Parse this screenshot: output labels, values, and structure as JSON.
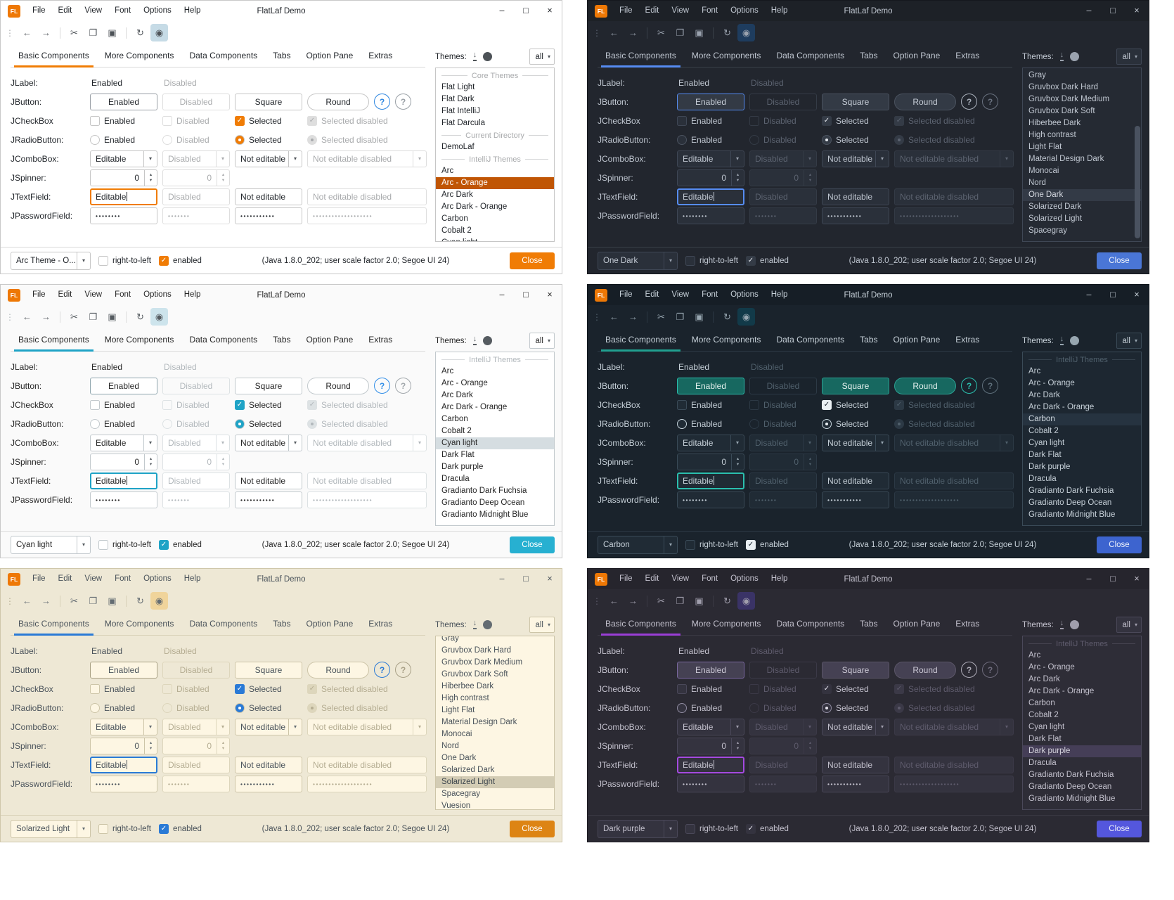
{
  "shared": {
    "titlebar": {
      "logo": "FL",
      "title": "FlatLaf Demo",
      "menus": [
        "File",
        "Edit",
        "View",
        "Font",
        "Options",
        "Help"
      ],
      "controls": {
        "minimize": "–",
        "maximize": "□",
        "close": "×"
      }
    },
    "toolbar": {
      "icons": [
        {
          "name": "back",
          "glyph": "←"
        },
        {
          "name": "forward",
          "glyph": "→"
        },
        {
          "name": "cut",
          "glyph": "✂"
        },
        {
          "name": "copy",
          "glyph": "❐"
        },
        {
          "name": "paste",
          "glyph": "▣"
        },
        {
          "name": "refresh",
          "glyph": "↻"
        },
        {
          "name": "eye",
          "glyph": "◉",
          "toggled": true
        }
      ],
      "dividers_after": [
        1,
        4
      ]
    },
    "tabs": [
      "Basic Components",
      "More Components",
      "Data Components",
      "Tabs",
      "Option Pane",
      "Extras"
    ],
    "active_tab_index": 0,
    "themes_header": {
      "label": "Themes:",
      "filter": "all"
    },
    "icons": {
      "chevron_down": "▾",
      "chevron_up": "▴",
      "check": "✓",
      "grip": "⋮"
    },
    "rows": [
      {
        "label": "JLabel:",
        "cells": [
          {
            "type": "text",
            "value": "Enabled"
          },
          {
            "type": "text",
            "value": "Disabled",
            "disabled": true
          }
        ]
      },
      {
        "label": "JButton:",
        "cells": [
          {
            "type": "button",
            "value": "Enabled",
            "default_button": true
          },
          {
            "type": "button",
            "value": "Disabled",
            "disabled": true
          },
          {
            "type": "button",
            "value": "Square"
          },
          {
            "type": "button",
            "value": "Round",
            "round": true
          },
          {
            "type": "help",
            "value": "?"
          },
          {
            "type": "help",
            "value": "?",
            "disabled": true
          }
        ]
      },
      {
        "label": "JCheckBox",
        "cells": [
          {
            "type": "checkbox",
            "value": "Enabled",
            "checked": false
          },
          {
            "type": "checkbox",
            "value": "Disabled",
            "checked": false,
            "disabled": true
          },
          {
            "type": "checkbox",
            "value": "Selected",
            "checked": true
          },
          {
            "type": "checkbox",
            "value": "Selected disabled",
            "checked": true,
            "disabled": true
          }
        ]
      },
      {
        "label": "JRadioButton:",
        "cells": [
          {
            "type": "radio",
            "value": "Enabled",
            "checked": false
          },
          {
            "type": "radio",
            "value": "Disabled",
            "checked": false,
            "disabled": true
          },
          {
            "type": "radio",
            "value": "Selected",
            "checked": true
          },
          {
            "type": "radio",
            "value": "Selected disabled",
            "checked": true,
            "disabled": true
          }
        ]
      },
      {
        "label": "JComboBox:",
        "cells": [
          {
            "type": "combo",
            "value": "Editable"
          },
          {
            "type": "combo",
            "value": "Disabled",
            "disabled": true
          },
          {
            "type": "combo",
            "value": "Not editable"
          },
          {
            "type": "combo",
            "value": "Not editable disabled",
            "disabled": true
          }
        ]
      },
      {
        "label": "JSpinner:",
        "cells": [
          {
            "type": "spinner",
            "value": "0"
          },
          {
            "type": "spinner",
            "value": "0",
            "disabled": true
          }
        ]
      },
      {
        "label": "JTextField:",
        "cells": [
          {
            "type": "textfield",
            "value": "Editable",
            "focused": true
          },
          {
            "type": "textfield",
            "value": "Disabled",
            "disabled": true
          },
          {
            "type": "textfield",
            "value": "Not editable"
          },
          {
            "type": "textfield",
            "value": "Not editable disabled",
            "disabled": true
          }
        ]
      },
      {
        "label": "JPasswordField:",
        "cells": [
          {
            "type": "password",
            "value": "••••••••"
          },
          {
            "type": "password",
            "value": "•••••••",
            "disabled": true
          },
          {
            "type": "password",
            "value": "•••••••••••"
          },
          {
            "type": "password",
            "value": "•••••••••••••••••••",
            "disabled": true
          }
        ]
      }
    ],
    "statusbar": {
      "rtl": "right-to-left",
      "enabled": "enabled",
      "java": "(Java 1.8.0_202;  user scale factor 2.0; Segoe UI 24)",
      "close": "Close"
    }
  },
  "panels": [
    {
      "name": "arc-orange",
      "theme_combo": "Arc Theme - O...",
      "selected_theme": "Arc - Orange",
      "scrollbar": false,
      "clip_top": false,
      "colors": {
        "win_border": "#c9c9c9",
        "window_bg": "#ffffff",
        "titlebar_bg": "#ffffff",
        "text": "#1f2328",
        "muted": "#a9abad",
        "border": "#c6c6c6",
        "border_dim": "#dedede",
        "field_bg": "#ffffff",
        "list_bg": "#ffffff",
        "accent": "#f07c05",
        "check_bg": "#f07c05",
        "check_mark": "#ffffff",
        "radio_bg": "#f07c05",
        "radio_border": "#c6c6c6",
        "radio_dot": "#ffffff",
        "sel_bg": "#c05504",
        "sel_fg": "#ffffff",
        "tab_underline": "#f07c05",
        "help_fg": "#2f87e0",
        "help2_fg": "#9aa0a6",
        "close_bg": "#f07c05",
        "close_fg": "#ffffff",
        "eye_bg": "#c6dbe6",
        "btn_bg": "#ffffff",
        "btn_border": "#c6c6c6",
        "btn_fg": "#1f2328",
        "btn_default_border": "#9aa0a6",
        "divider": "#d9d9d9",
        "icon": "#4d5257",
        "scroll": "#d0d0d0"
      },
      "theme_list": [
        {
          "type": "separator",
          "label": "Core Themes"
        },
        {
          "type": "item",
          "label": "Flat Light"
        },
        {
          "type": "item",
          "label": "Flat Dark"
        },
        {
          "type": "item",
          "label": "Flat IntelliJ"
        },
        {
          "type": "item",
          "label": "Flat Darcula"
        },
        {
          "type": "separator",
          "label": "Current Directory"
        },
        {
          "type": "item",
          "label": "DemoLaf"
        },
        {
          "type": "separator",
          "label": "IntelliJ Themes"
        },
        {
          "type": "item",
          "label": "Arc"
        },
        {
          "type": "item",
          "label": "Arc - Orange",
          "selected": true
        },
        {
          "type": "item",
          "label": "Arc Dark"
        },
        {
          "type": "item",
          "label": "Arc Dark - Orange"
        },
        {
          "type": "item",
          "label": "Carbon"
        },
        {
          "type": "item",
          "label": "Cobalt 2"
        },
        {
          "type": "item",
          "label": "Cyan light"
        }
      ]
    },
    {
      "name": "one-dark",
      "theme_combo": "One Dark",
      "selected_theme": "One Dark",
      "scrollbar": true,
      "clip_top": false,
      "colors": {
        "win_border": "#15181d",
        "window_bg": "#22262e",
        "titlebar_bg": "#1d2127",
        "text": "#c0c7d1",
        "muted": "#5c6370",
        "border": "#3f4755",
        "border_dim": "#343b46",
        "field_bg": "#2a303a",
        "list_bg": "#252a33",
        "accent": "#568cf2",
        "check_bg": "#343b46",
        "check_mark": "#e2e6ec",
        "radio_bg": "#343b46",
        "radio_border": "#4a525f",
        "radio_dot": "#e2e6ec",
        "sel_bg": "#333a46",
        "sel_fg": "#d6dae2",
        "tab_underline": "#568cf2",
        "help_fg": "#aab1bc",
        "help2_fg": "#6a7280",
        "close_bg": "#4a76d6",
        "close_fg": "#eef2fa",
        "eye_bg": "#1e3c5e",
        "btn_bg": "#333a45",
        "btn_border": "#4a525f",
        "btn_fg": "#c8cfd9",
        "btn_default_border": "#568cf2",
        "divider": "#394049",
        "icon": "#9aa2ae",
        "scroll": "#4a5260"
      },
      "theme_list": [
        {
          "type": "item",
          "label": "Gray"
        },
        {
          "type": "item",
          "label": "Gruvbox Dark Hard"
        },
        {
          "type": "item",
          "label": "Gruvbox Dark Medium"
        },
        {
          "type": "item",
          "label": "Gruvbox Dark Soft"
        },
        {
          "type": "item",
          "label": "Hiberbee Dark"
        },
        {
          "type": "item",
          "label": "High contrast"
        },
        {
          "type": "item",
          "label": "Light Flat"
        },
        {
          "type": "item",
          "label": "Material Design Dark"
        },
        {
          "type": "item",
          "label": "Monocai"
        },
        {
          "type": "item",
          "label": "Nord"
        },
        {
          "type": "item",
          "label": "One Dark",
          "selected": true
        },
        {
          "type": "item",
          "label": "Solarized Dark"
        },
        {
          "type": "item",
          "label": "Solarized Light"
        },
        {
          "type": "item",
          "label": "Spacegray"
        }
      ]
    },
    {
      "name": "cyan-light",
      "theme_combo": "Cyan light",
      "selected_theme": "Cyan light",
      "scrollbar": false,
      "clip_top": false,
      "colors": {
        "win_border": "#c9c9c9",
        "window_bg": "#fafafa",
        "titlebar_bg": "#fafafa",
        "text": "#262626",
        "muted": "#b2b8bc",
        "border": "#c2c9cd",
        "border_dim": "#dde2e4",
        "field_bg": "#ffffff",
        "list_bg": "#ffffff",
        "accent": "#1fa3c6",
        "check_bg": "#1fa3c6",
        "check_mark": "#ffffff",
        "radio_bg": "#1fa3c6",
        "radio_border": "#c2c9cd",
        "radio_dot": "#ffffff",
        "sel_bg": "#d5dde1",
        "sel_fg": "#262626",
        "tab_underline": "#1fa3c6",
        "help_fg": "#338fe8",
        "help2_fg": "#a2a8ac",
        "close_bg": "#27b0d1",
        "close_fg": "#ffffff",
        "eye_bg": "#cde4ec",
        "btn_bg": "#ffffff",
        "btn_border": "#c2c9cd",
        "btn_fg": "#262626",
        "btn_default_border": "#8fa6ae",
        "divider": "#dddddd",
        "icon": "#555b60",
        "scroll": "#d0d0d0"
      },
      "theme_list": [
        {
          "type": "separator",
          "label": "IntelliJ Themes"
        },
        {
          "type": "item",
          "label": "Arc"
        },
        {
          "type": "item",
          "label": "Arc - Orange"
        },
        {
          "type": "item",
          "label": "Arc Dark"
        },
        {
          "type": "item",
          "label": "Arc Dark - Orange"
        },
        {
          "type": "item",
          "label": "Carbon"
        },
        {
          "type": "item",
          "label": "Cobalt 2"
        },
        {
          "type": "item",
          "label": "Cyan light",
          "selected": true
        },
        {
          "type": "item",
          "label": "Dark Flat"
        },
        {
          "type": "item",
          "label": "Dark purple"
        },
        {
          "type": "item",
          "label": "Dracula"
        },
        {
          "type": "item",
          "label": "Gradianto Dark Fuchsia"
        },
        {
          "type": "item",
          "label": "Gradianto Deep Ocean"
        },
        {
          "type": "item",
          "label": "Gradianto Midnight Blue"
        }
      ]
    },
    {
      "name": "carbon",
      "theme_combo": "Carbon",
      "selected_theme": "Carbon",
      "scrollbar": false,
      "clip_top": false,
      "colors": {
        "win_border": "#10161c",
        "window_bg": "#1a232c",
        "titlebar_bg": "#161e26",
        "text": "#c6d0d8",
        "muted": "#50606c",
        "border": "#3a4a57",
        "border_dim": "#2c3945",
        "field_bg": "#202b35",
        "list_bg": "#1d2731",
        "accent": "#2bbfae",
        "check_bg": "#e9eff3",
        "check_mark": "#16202a",
        "radio_bg": "#202b35",
        "radio_border": "#c6d4dc",
        "radio_dot": "#e9eff3",
        "sel_bg": "#263340",
        "sel_fg": "#d2dbe2",
        "tab_underline": "#21a090",
        "help_fg": "#2bbfae",
        "help2_fg": "#5e6f7b",
        "close_bg": "#3d64cf",
        "close_fg": "#ecf0fa",
        "eye_bg": "#123a49",
        "btn_bg": "#176860",
        "btn_border": "#2ba092",
        "btn_fg": "#e6f2ef",
        "btn_default_border": "#2bbfae",
        "divider": "#2b3844",
        "icon": "#97a6b0",
        "scroll": "#3b4c5a"
      },
      "theme_list": [
        {
          "type": "separator",
          "label": "IntelliJ Themes"
        },
        {
          "type": "item",
          "label": "Arc"
        },
        {
          "type": "item",
          "label": "Arc - Orange"
        },
        {
          "type": "item",
          "label": "Arc Dark"
        },
        {
          "type": "item",
          "label": "Arc Dark - Orange"
        },
        {
          "type": "item",
          "label": "Carbon",
          "selected": true
        },
        {
          "type": "item",
          "label": "Cobalt 2"
        },
        {
          "type": "item",
          "label": "Cyan light"
        },
        {
          "type": "item",
          "label": "Dark Flat"
        },
        {
          "type": "item",
          "label": "Dark purple"
        },
        {
          "type": "item",
          "label": "Dracula"
        },
        {
          "type": "item",
          "label": "Gradianto Dark Fuchsia"
        },
        {
          "type": "item",
          "label": "Gradianto Deep Ocean"
        },
        {
          "type": "item",
          "label": "Gradianto Midnight Blue"
        }
      ]
    },
    {
      "name": "solarized-light",
      "theme_combo": "Solarized Light",
      "selected_theme": "Solarized Light",
      "scrollbar": false,
      "clip_top": true,
      "colors": {
        "win_border": "#cfc7ab",
        "window_bg": "#eee8d5",
        "titlebar_bg": "#eee8d5",
        "text": "#49525a",
        "muted": "#b5ad92",
        "border": "#cdc5a8",
        "border_dim": "#ddd6bc",
        "field_bg": "#fdf6e3",
        "list_bg": "#fdf6e3",
        "accent": "#2a7ad6",
        "check_bg": "#2a7ad6",
        "check_mark": "#ffffff",
        "radio_bg": "#2a7ad6",
        "radio_border": "#cdc5a8",
        "radio_dot": "#ffffff",
        "sel_bg": "#d3ccb4",
        "sel_fg": "#3e474e",
        "tab_underline": "#2a7ad6",
        "help_fg": "#2a7ad6",
        "help2_fg": "#a9a187",
        "close_bg": "#dd8414",
        "close_fg": "#ffffff",
        "eye_bg": "#f0d49b",
        "btn_bg": "#fdf6e3",
        "btn_border": "#cdc5a8",
        "btn_fg": "#49525a",
        "btn_default_border": "#a8a083",
        "divider": "#d8d1b8",
        "icon": "#646c72",
        "scroll": "#cfc8ac"
      },
      "theme_list": [
        {
          "type": "item",
          "label": "Gray"
        },
        {
          "type": "item",
          "label": "Gruvbox Dark Hard"
        },
        {
          "type": "item",
          "label": "Gruvbox Dark Medium"
        },
        {
          "type": "item",
          "label": "Gruvbox Dark Soft"
        },
        {
          "type": "item",
          "label": "Hiberbee Dark"
        },
        {
          "type": "item",
          "label": "High contrast"
        },
        {
          "type": "item",
          "label": "Light Flat"
        },
        {
          "type": "item",
          "label": "Material Design Dark"
        },
        {
          "type": "item",
          "label": "Monocai"
        },
        {
          "type": "item",
          "label": "Nord"
        },
        {
          "type": "item",
          "label": "One Dark"
        },
        {
          "type": "item",
          "label": "Solarized Dark"
        },
        {
          "type": "item",
          "label": "Solarized Light",
          "selected": true
        },
        {
          "type": "item",
          "label": "Spacegray"
        },
        {
          "type": "item",
          "label": "Vuesion"
        }
      ]
    },
    {
      "name": "dark-purple",
      "theme_combo": "Dark purple",
      "selected_theme": "Dark purple",
      "scrollbar": false,
      "clip_top": false,
      "colors": {
        "win_border": "#1c1b22",
        "window_bg": "#2b2a33",
        "titlebar_bg": "#26252d",
        "text": "#c3c1cd",
        "muted": "#5e5b6c",
        "border": "#4a4859",
        "border_dim": "#3b3947",
        "field_bg": "#34333f",
        "list_bg": "#2e2d37",
        "accent": "#a44ae0",
        "check_bg": "#34333f",
        "check_mark": "#e2e0ea",
        "radio_bg": "#34333f",
        "radio_border": "#8f8ba0",
        "radio_dot": "#e2e0ea",
        "sel_bg": "#453e57",
        "sel_fg": "#d4d2dc",
        "tab_underline": "#9a3ed6",
        "help_fg": "#aeacb8",
        "help2_fg": "#6e6b7c",
        "close_bg": "#5457dd",
        "close_fg": "#eef0fa",
        "eye_bg": "#3a3366",
        "btn_bg": "#454153",
        "btn_border": "#5b5668",
        "btn_fg": "#ccc9d6",
        "btn_default_border": "#7a68a0",
        "divider": "#3a3944",
        "icon": "#a09eac",
        "scroll": "#4c4a5a"
      },
      "theme_list": [
        {
          "type": "separator",
          "label": "IntelliJ Themes"
        },
        {
          "type": "item",
          "label": "Arc"
        },
        {
          "type": "item",
          "label": "Arc - Orange"
        },
        {
          "type": "item",
          "label": "Arc Dark"
        },
        {
          "type": "item",
          "label": "Arc Dark - Orange"
        },
        {
          "type": "item",
          "label": "Carbon"
        },
        {
          "type": "item",
          "label": "Cobalt 2"
        },
        {
          "type": "item",
          "label": "Cyan light"
        },
        {
          "type": "item",
          "label": "Dark Flat"
        },
        {
          "type": "item",
          "label": "Dark purple",
          "selected": true
        },
        {
          "type": "item",
          "label": "Dracula"
        },
        {
          "type": "item",
          "label": "Gradianto Dark Fuchsia"
        },
        {
          "type": "item",
          "label": "Gradianto Deep Ocean"
        },
        {
          "type": "item",
          "label": "Gradianto Midnight Blue"
        }
      ]
    }
  ]
}
